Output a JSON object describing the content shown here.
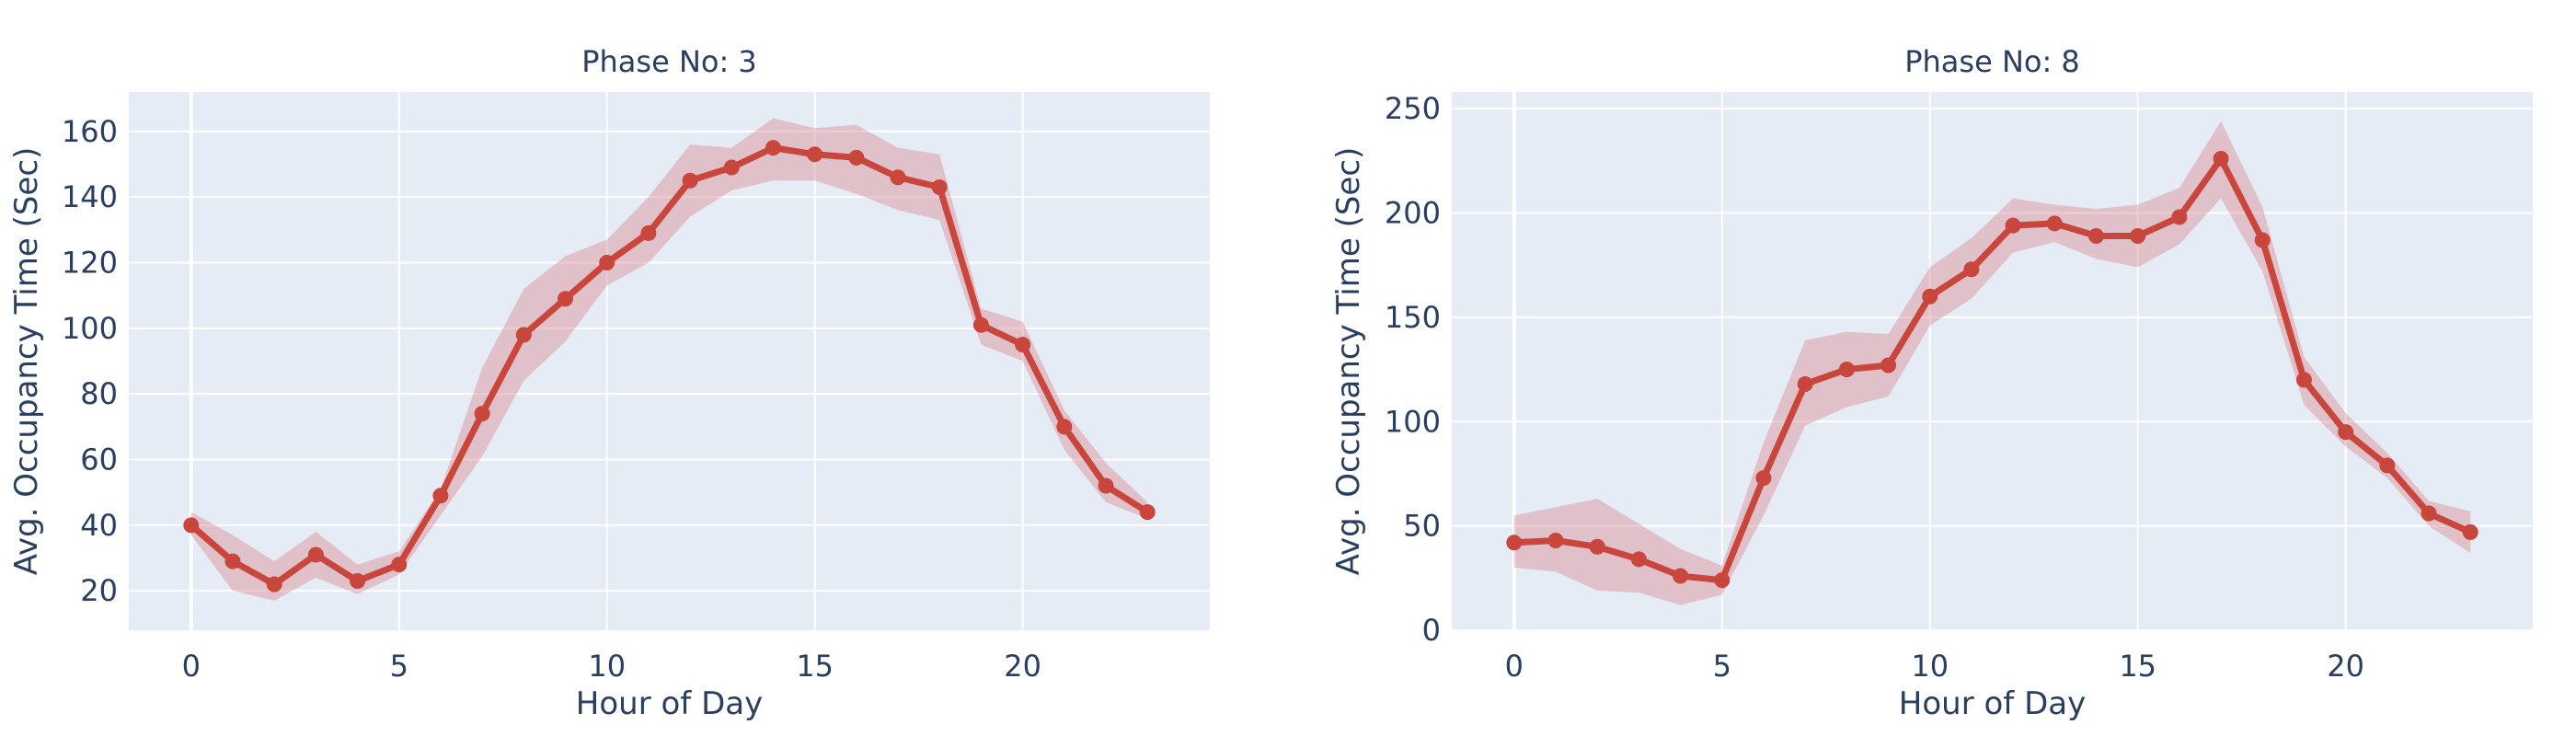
{
  "chart_data": [
    {
      "type": "line",
      "title": "Phase No: 3",
      "xlabel": "Hour of Day",
      "ylabel": "Avg. Occupancy Time (Sec)",
      "xlim": [
        -1.5,
        24.5
      ],
      "ylim": [
        8,
        172
      ],
      "xticks": [
        0,
        5,
        10,
        15,
        20
      ],
      "yticks": [
        20,
        40,
        60,
        80,
        100,
        120,
        140,
        160
      ],
      "grid": true,
      "colors": {
        "line": "#c9463d",
        "band": "#d9868a",
        "background": "#e5ecf6"
      },
      "x": [
        0,
        1,
        2,
        3,
        4,
        5,
        6,
        7,
        8,
        9,
        10,
        11,
        12,
        13,
        14,
        15,
        16,
        17,
        18,
        19,
        20,
        21,
        22,
        23
      ],
      "series": [
        {
          "values": [
            40,
            29,
            22,
            31,
            23,
            28,
            49,
            74,
            98,
            109,
            120,
            129,
            145,
            149,
            155,
            153,
            152,
            146,
            143,
            101,
            95,
            70,
            52,
            44
          ],
          "upper": [
            44,
            37,
            29,
            38,
            28,
            32,
            51,
            88,
            112,
            122,
            127,
            140,
            156,
            155,
            164,
            161,
            162,
            155,
            153,
            106,
            102,
            75,
            59,
            47
          ],
          "lower": [
            37,
            20,
            17,
            24,
            19,
            25,
            43,
            61,
            84,
            96,
            113,
            120,
            134,
            142,
            145,
            145,
            141,
            136,
            133,
            95,
            90,
            63,
            47,
            42
          ]
        }
      ]
    },
    {
      "type": "line",
      "title": "Phase No: 8",
      "xlabel": "Hour of Day",
      "ylabel": "Avg. Occupancy Time (Sec)",
      "xlim": [
        -1.5,
        24.5
      ],
      "ylim": [
        0,
        258
      ],
      "xticks": [
        0,
        5,
        10,
        15,
        20
      ],
      "yticks": [
        0,
        50,
        100,
        150,
        200,
        250
      ],
      "grid": true,
      "colors": {
        "line": "#c9463d",
        "band": "#d9868a",
        "background": "#e5ecf6"
      },
      "x": [
        0,
        1,
        2,
        3,
        4,
        5,
        6,
        7,
        8,
        9,
        10,
        11,
        12,
        13,
        14,
        15,
        16,
        17,
        18,
        19,
        20,
        21,
        22,
        23
      ],
      "series": [
        {
          "values": [
            42,
            43,
            40,
            34,
            26,
            24,
            73,
            118,
            125,
            127,
            160,
            173,
            194,
            195,
            189,
            189,
            198,
            226,
            187,
            120,
            95,
            79,
            56,
            47
          ],
          "upper": [
            55,
            59,
            63,
            51,
            39,
            31,
            90,
            139,
            143,
            142,
            174,
            188,
            207,
            204,
            202,
            204,
            212,
            244,
            203,
            131,
            104,
            85,
            62,
            57
          ],
          "lower": [
            30,
            28,
            19,
            18,
            12,
            17,
            55,
            98,
            107,
            112,
            146,
            159,
            181,
            186,
            178,
            174,
            185,
            207,
            172,
            108,
            88,
            73,
            50,
            37
          ]
        }
      ]
    }
  ]
}
